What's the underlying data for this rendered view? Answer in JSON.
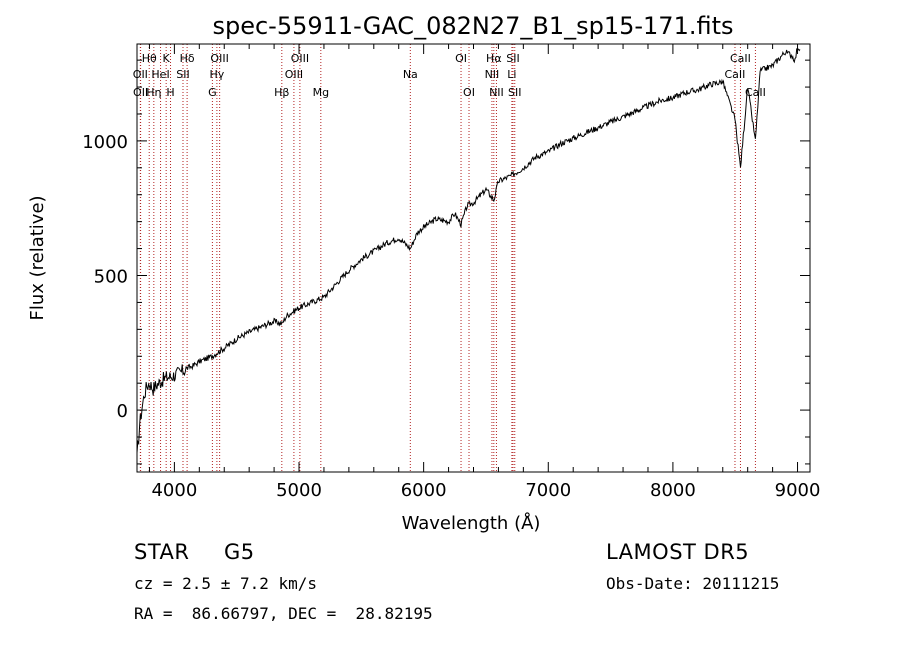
{
  "chart_data": {
    "type": "line",
    "title": "spec-55911-GAC_082N27_B1_sp15-171.fits",
    "xlabel": "Wavelength (Å)",
    "ylabel": "Flux (relative)",
    "xlim": [
      3700,
      9100
    ],
    "ylim": [
      -230,
      1360
    ],
    "xticks": [
      4000,
      5000,
      6000,
      7000,
      8000,
      9000
    ],
    "yticks": [
      0,
      500,
      1000
    ],
    "xtick_labels": [
      "4000",
      "5000",
      "6000",
      "7000",
      "8000",
      "9000"
    ],
    "ytick_labels": [
      "0",
      "500",
      "1000"
    ],
    "grid": false,
    "series": [
      {
        "x": [
          3700,
          3720,
          3740,
          3760,
          3780,
          3800,
          3830,
          3860,
          3900,
          3930,
          3970,
          4000,
          4050,
          4100,
          4150,
          4200,
          4250,
          4300,
          4350,
          4400,
          4500,
          4600,
          4700,
          4800,
          4862,
          4900,
          5000,
          5100,
          5200,
          5300,
          5400,
          5500,
          5600,
          5700,
          5800,
          5893,
          5950,
          6000,
          6100,
          6200,
          6250,
          6300,
          6350,
          6400,
          6500,
          6563,
          6600,
          6700,
          6800,
          6900,
          7000,
          7100,
          7200,
          7300,
          7400,
          7500,
          7600,
          7700,
          7800,
          7900,
          8000,
          8100,
          8200,
          8300,
          8400,
          8498,
          8542,
          8600,
          8662,
          8700,
          8800,
          8900,
          8950,
          8980,
          9000,
          9020
        ],
        "y": [
          -180,
          -60,
          10,
          60,
          90,
          100,
          80,
          95,
          110,
          120,
          125,
          130,
          140,
          155,
          165,
          180,
          190,
          200,
          215,
          230,
          265,
          290,
          310,
          330,
          320,
          350,
          380,
          400,
          420,
          470,
          520,
          560,
          590,
          620,
          640,
          600,
          660,
          680,
          710,
          700,
          730,
          690,
          760,
          770,
          820,
          780,
          850,
          870,
          900,
          940,
          960,
          990,
          1010,
          1030,
          1050,
          1070,
          1090,
          1110,
          1130,
          1150,
          1160,
          1180,
          1190,
          1210,
          1220,
          1080,
          900,
          1200,
          1000,
          1260,
          1280,
          1330,
          1320,
          1300,
          1350,
          1340
        ]
      }
    ],
    "spectral_lines": [
      {
        "label": "Hθ",
        "x": 3798,
        "row": 1
      },
      {
        "label": "OII",
        "x": 3727,
        "row": 2
      },
      {
        "label": "OII",
        "x": 3729,
        "row": 3
      },
      {
        "label": "Hη",
        "x": 3835,
        "row": 3
      },
      {
        "label": "K",
        "x": 3934,
        "row": 1
      },
      {
        "label": "HeI",
        "x": 3889,
        "row": 2
      },
      {
        "label": "H",
        "x": 3969,
        "row": 3
      },
      {
        "label": "Hδ",
        "x": 4102,
        "row": 1
      },
      {
        "label": "SII",
        "x": 4069,
        "row": 2
      },
      {
        "label": "OIII",
        "x": 4363,
        "row": 1
      },
      {
        "label": "Hγ",
        "x": 4341,
        "row": 2
      },
      {
        "label": "G",
        "x": 4305,
        "row": 3
      },
      {
        "label": "OIII",
        "x": 5007,
        "row": 1
      },
      {
        "label": "OIII",
        "x": 4959,
        "row": 2
      },
      {
        "label": "Hβ",
        "x": 4862,
        "row": 3
      },
      {
        "label": "Mg",
        "x": 5175,
        "row": 3
      },
      {
        "label": "Na",
        "x": 5893,
        "row": 2
      },
      {
        "label": "OI",
        "x": 6300,
        "row": 1
      },
      {
        "label": "OI",
        "x": 6364,
        "row": 3
      },
      {
        "label": "Hα",
        "x": 6563,
        "row": 1
      },
      {
        "label": "NII",
        "x": 6548,
        "row": 2
      },
      {
        "label": "NII",
        "x": 6584,
        "row": 3
      },
      {
        "label": "SII",
        "x": 6717,
        "row": 1
      },
      {
        "label": "Li",
        "x": 6708,
        "row": 2
      },
      {
        "label": "SII",
        "x": 6731,
        "row": 3
      },
      {
        "label": "CaII",
        "x": 8542,
        "row": 1
      },
      {
        "label": "CaII",
        "x": 8498,
        "row": 2
      },
      {
        "label": "CaII",
        "x": 8662,
        "row": 3
      }
    ],
    "line_color": "#000000",
    "marker_color": "#b22222"
  },
  "footer": {
    "class_label": "STAR",
    "subclass": "G5",
    "survey": "LAMOST DR5",
    "cz": "cz = 2.5 ± 7.2 km/s",
    "obs_date": "Obs-Date: 20111215",
    "coords": "RA =  86.66797, DEC =  28.82195"
  }
}
